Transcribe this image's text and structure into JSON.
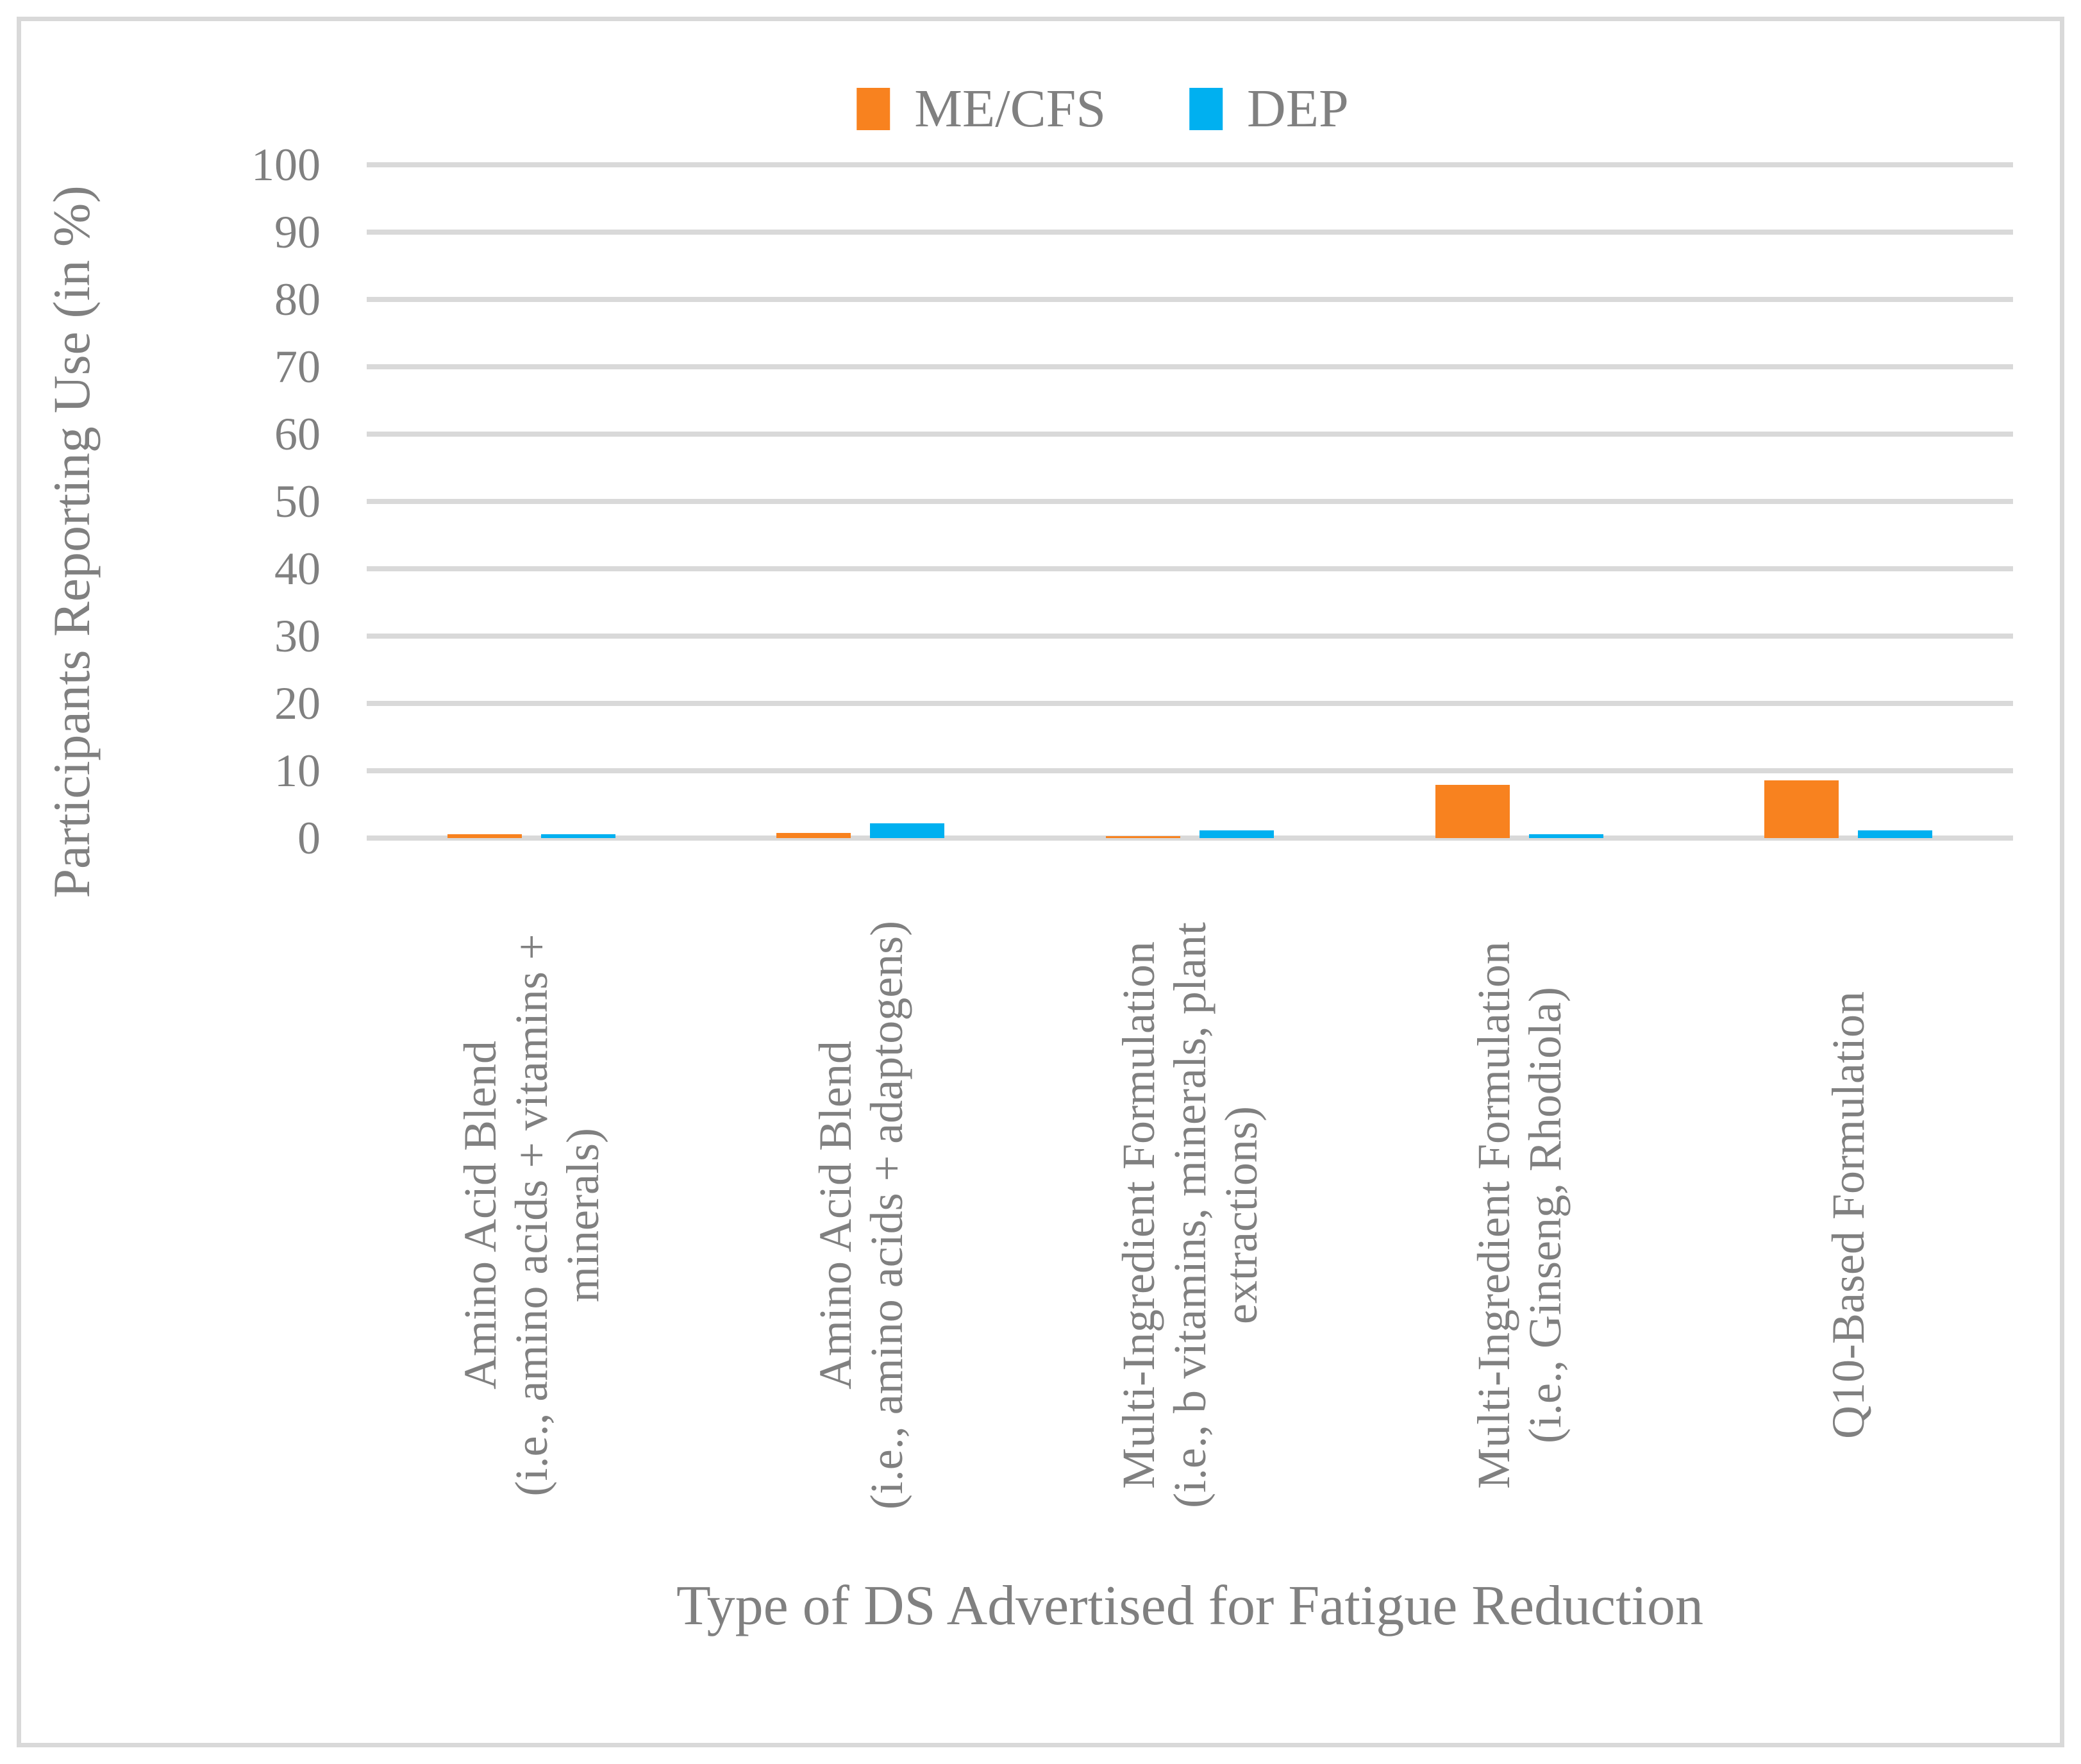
{
  "colors": {
    "me_cfs": "#F8821F",
    "dep": "#00B0F0",
    "gridline": "#D9D9D9",
    "text": "#808080",
    "background": "#FFFFFF"
  },
  "legend": {
    "items": [
      {
        "label": "ME/CFS",
        "color": "#F8821F"
      },
      {
        "label": "DEP",
        "color": "#00B0F0"
      }
    ]
  },
  "chart_data": {
    "type": "bar",
    "title": "",
    "xlabel": "Type of DS Advertised for Fatigue Reduction",
    "ylabel": "Participants Reporting Use (in %)",
    "ylim": [
      0,
      100
    ],
    "yticks": [
      0,
      10,
      20,
      30,
      40,
      50,
      60,
      70,
      80,
      90,
      100
    ],
    "grid": "horizontal",
    "legend_position": "top-center",
    "categories": [
      {
        "lines": [
          "Amino Acid Blend",
          "(i.e., amino acids + vitamins +",
          "minerals)"
        ]
      },
      {
        "lines": [
          "Amino Acid Blend",
          "(i.e., amino acids + adaptogens)"
        ]
      },
      {
        "lines": [
          "Multi-Ingredient Formulation",
          "(i.e., b vitamins, minerals, plant",
          "extractions)"
        ]
      },
      {
        "lines": [
          "Multi-Ingredient Formulation",
          "(i.e., Ginseng, Rhodiola)"
        ]
      },
      {
        "lines": [
          "Q10-Based Formulation"
        ]
      }
    ],
    "series": [
      {
        "name": "ME/CFS",
        "color": "#F8821F",
        "values": [
          0.6,
          0.8,
          0.3,
          7.9,
          8.6
        ]
      },
      {
        "name": "DEP",
        "color": "#00B0F0",
        "values": [
          0.6,
          2.2,
          1.1,
          0.6,
          1.1
        ]
      }
    ]
  }
}
